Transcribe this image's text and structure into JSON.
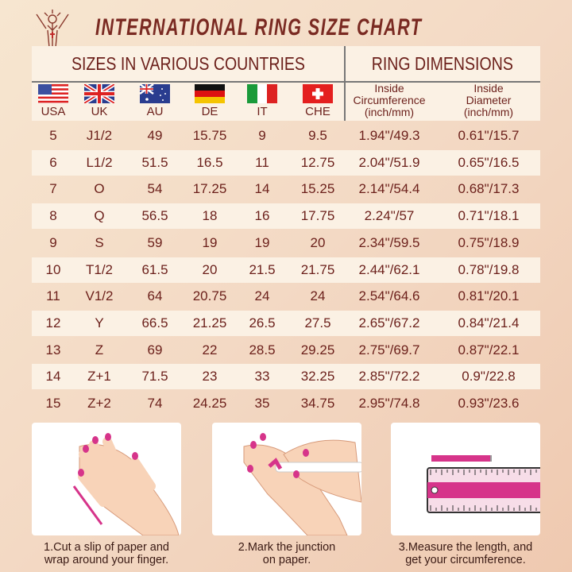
{
  "title": "INTERNATIONAL RING SIZE CHART",
  "header": {
    "sizes": "SIZES IN VARIOUS COUNTRIES",
    "dimensions": "RING DIMENSIONS",
    "countries": [
      {
        "code": "USA",
        "flag": "us-flag"
      },
      {
        "code": "UK",
        "flag": "uk-flag"
      },
      {
        "code": "AU",
        "flag": "au-flag"
      },
      {
        "code": "DE",
        "flag": "de-flag"
      },
      {
        "code": "IT",
        "flag": "it-flag"
      },
      {
        "code": "CHE",
        "flag": "ch-flag"
      }
    ],
    "circ": [
      "Inside",
      "Circumference",
      "(inch/mm)"
    ],
    "diam": [
      "Inside",
      "Diameter",
      "(inch/mm)"
    ]
  },
  "rows": [
    [
      "5",
      "J1/2",
      "49",
      "15.75",
      "9",
      "9.5",
      "1.94\"/49.3",
      "0.61\"/15.7"
    ],
    [
      "6",
      "L1/2",
      "51.5",
      "16.5",
      "11",
      "12.75",
      "2.04\"/51.9",
      "0.65\"/16.5"
    ],
    [
      "7",
      "O",
      "54",
      "17.25",
      "14",
      "15.25",
      "2.14\"/54.4",
      "0.68\"/17.3"
    ],
    [
      "8",
      "Q",
      "56.5",
      "18",
      "16",
      "17.75",
      "2.24\"/57",
      "0.71\"/18.1"
    ],
    [
      "9",
      "S",
      "59",
      "19",
      "19",
      "20",
      "2.34\"/59.5",
      "0.75\"/18.9"
    ],
    [
      "10",
      "T1/2",
      "61.5",
      "20",
      "21.5",
      "21.75",
      "2.44\"/62.1",
      "0.78\"/19.8"
    ],
    [
      "11",
      "V1/2",
      "64",
      "20.75",
      "24",
      "24",
      "2.54\"/64.6",
      "0.81\"/20.1"
    ],
    [
      "12",
      "Y",
      "66.5",
      "21.25",
      "26.5",
      "27.5",
      "2.65\"/67.2",
      "0.84\"/21.4"
    ],
    [
      "13",
      "Z",
      "69",
      "22",
      "28.5",
      "29.25",
      "2.75\"/69.7",
      "0.87\"/22.1"
    ],
    [
      "14",
      "Z+1",
      "71.5",
      "23",
      "33",
      "32.25",
      "2.85\"/72.2",
      "0.9\"/22.8"
    ],
    [
      "15",
      "Z+2",
      "74",
      "24.25",
      "35",
      "34.75",
      "2.95\"/74.8",
      "0.93\"/23.6"
    ]
  ],
  "steps": [
    {
      "line1": "1.Cut a slip of paper and",
      "line2": "wrap around your finger."
    },
    {
      "line1": "2.Mark the junction",
      "line2": "on paper."
    },
    {
      "line1": "3.Measure the length, and",
      "line2": "get your circumference."
    }
  ],
  "colors": {
    "text": "#6b1f1a",
    "accent": "#d6348a"
  }
}
